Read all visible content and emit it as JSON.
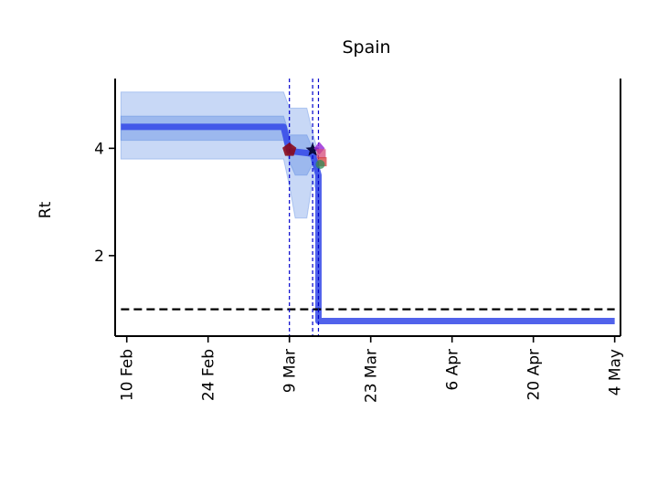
{
  "chart_data": {
    "type": "line",
    "title": "Spain",
    "xlabel": "",
    "ylabel": "Rt",
    "x_type": "date",
    "xlim": [
      "2020-02-08",
      "2020-05-05"
    ],
    "ylim": [
      0.5,
      5.3
    ],
    "x_ticks": [
      {
        "date": "2020-02-10",
        "label": "10 Feb"
      },
      {
        "date": "2020-02-24",
        "label": "24 Feb"
      },
      {
        "date": "2020-03-09",
        "label": "9 Mar"
      },
      {
        "date": "2020-03-23",
        "label": "23 Mar"
      },
      {
        "date": "2020-04-06",
        "label": "6 Apr"
      },
      {
        "date": "2020-04-20",
        "label": "20 Apr"
      },
      {
        "date": "2020-05-04",
        "label": "4 May"
      }
    ],
    "y_ticks": [
      {
        "value": 2,
        "label": "2"
      },
      {
        "value": 4,
        "label": "4"
      }
    ],
    "grid": false,
    "series": [
      {
        "color": "#3346e8",
        "x": [
          "2020-02-09",
          "2020-03-08",
          "2020-03-09",
          "2020-03-13",
          "2020-03-14",
          "2020-03-14",
          "2020-05-04"
        ],
        "y": [
          4.4,
          4.4,
          3.95,
          3.9,
          3.5,
          0.78,
          0.78
        ],
        "band_outer": {
          "x": [
            "2020-02-09",
            "2020-03-08",
            "2020-03-09",
            "2020-03-10",
            "2020-03-12",
            "2020-03-13",
            "2020-03-14",
            "2020-03-14"
          ],
          "upper": [
            5.05,
            5.05,
            4.75,
            4.75,
            4.75,
            4.3,
            3.9,
            0.85
          ],
          "lower": [
            3.8,
            3.8,
            3.3,
            2.7,
            2.7,
            3.4,
            3.1,
            0.72
          ]
        },
        "band_inner": {
          "x": [
            "2020-02-09",
            "2020-03-08",
            "2020-03-09",
            "2020-03-10",
            "2020-03-12",
            "2020-03-13",
            "2020-03-14",
            "2020-03-14"
          ],
          "upper": [
            4.6,
            4.6,
            4.25,
            4.25,
            4.25,
            4.0,
            3.7,
            0.8
          ],
          "lower": [
            4.15,
            4.15,
            3.75,
            3.5,
            3.5,
            3.7,
            3.4,
            0.76
          ]
        }
      }
    ],
    "reference_line": {
      "y": 1.0,
      "x_start": "2020-02-09",
      "x_end": "2020-05-04",
      "style": "dashed",
      "color": "#000000"
    },
    "vertical_lines": [
      {
        "x": "2020-03-09",
        "style": "dashed",
        "color": "#0000cc"
      },
      {
        "x": "2020-03-13",
        "style": "dashed",
        "color": "#0000cc"
      },
      {
        "x": "2020-03-14",
        "style": "dashed",
        "color": "#0000cc"
      }
    ],
    "markers": [
      {
        "x": "2020-03-09",
        "y": 3.97,
        "shape": "pentagon",
        "color": "#8b0a1a"
      },
      {
        "x": "2020-03-13",
        "y": 3.97,
        "shape": "star",
        "color": "#0a0a40"
      },
      {
        "x": "2020-03-14",
        "y": 4.0,
        "shape": "diamond",
        "color": "#9b30d8"
      },
      {
        "x": "2020-03-14",
        "y": 3.9,
        "shape": "square",
        "color": "#d64a7a"
      },
      {
        "x": "2020-03-14",
        "y": 3.75,
        "shape": "square",
        "color": "#d33a3a"
      },
      {
        "x": "2020-03-14",
        "y": 3.7,
        "shape": "circle",
        "color": "#2e8b57"
      }
    ]
  }
}
